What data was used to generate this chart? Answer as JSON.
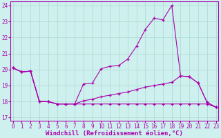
{
  "xlabel": "Windchill (Refroidissement éolien,°C)",
  "background_color": "#cef0ee",
  "grid_color": "#aad8d0",
  "line_color": "#aa00aa",
  "spine_color": "#aa00aa",
  "x_hours": [
    0,
    1,
    2,
    3,
    4,
    5,
    6,
    7,
    8,
    9,
    10,
    11,
    12,
    13,
    14,
    15,
    16,
    17,
    18,
    19,
    20,
    21,
    22,
    23
  ],
  "line_temp": [
    20.1,
    19.85,
    19.9,
    18.0,
    18.0,
    17.85,
    17.85,
    17.85,
    18.05,
    18.15,
    18.3,
    18.4,
    18.5,
    18.6,
    18.75,
    18.9,
    19.0,
    19.1,
    19.2,
    19.6,
    19.55,
    19.15,
    17.95,
    17.65
  ],
  "line_wc": [
    20.1,
    19.85,
    19.9,
    18.0,
    18.0,
    17.85,
    17.85,
    17.85,
    19.1,
    19.15,
    20.05,
    20.2,
    20.25,
    20.65,
    21.45,
    22.5,
    23.2,
    23.1,
    24.0,
    19.6,
    19.55,
    19.15,
    17.95,
    17.65
  ],
  "line_flat": [
    20.1,
    19.85,
    19.9,
    18.0,
    18.0,
    17.85,
    17.85,
    17.85,
    17.85,
    17.85,
    17.85,
    17.85,
    17.85,
    17.85,
    17.85,
    17.85,
    17.85,
    17.85,
    17.85,
    17.85,
    17.85,
    17.85,
    17.85,
    17.65
  ],
  "ylim_min": 16.8,
  "ylim_max": 24.25,
  "yticks": [
    17,
    18,
    19,
    20,
    21,
    22,
    23,
    24
  ],
  "xticks": [
    0,
    1,
    2,
    3,
    4,
    5,
    6,
    7,
    8,
    9,
    10,
    11,
    12,
    13,
    14,
    15,
    16,
    17,
    18,
    19,
    20,
    21,
    22,
    23
  ],
  "xlabel_fontsize": 6.5,
  "tick_fontsize": 5.5,
  "lw": 0.8,
  "ms": 2.5
}
